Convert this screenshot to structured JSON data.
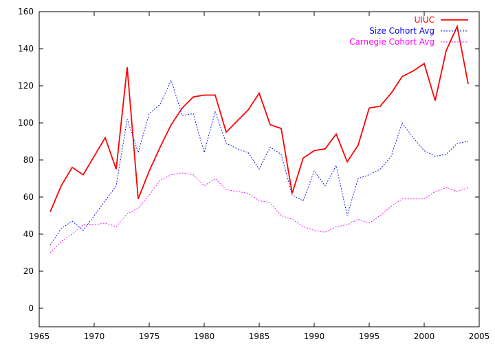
{
  "chart_data": {
    "type": "line",
    "title": "",
    "xlabel": "",
    "ylabel": "",
    "xlim": [
      1965,
      2005
    ],
    "ylim": [
      -10,
      160
    ],
    "xticks": [
      1965,
      1970,
      1975,
      1980,
      1985,
      1990,
      1995,
      2000,
      2005
    ],
    "yticks": [
      0,
      20,
      40,
      60,
      80,
      100,
      120,
      140,
      160
    ],
    "grid": false,
    "legend": "top-right",
    "x": [
      1966,
      1967,
      1968,
      1969,
      1970,
      1971,
      1972,
      1973,
      1974,
      1975,
      1976,
      1977,
      1978,
      1979,
      1980,
      1981,
      1982,
      1983,
      1984,
      1985,
      1986,
      1987,
      1988,
      1989,
      1990,
      1991,
      1992,
      1993,
      1994,
      1995,
      1996,
      1997,
      1998,
      1999,
      2000,
      2001,
      2002,
      2003,
      2004
    ],
    "series": [
      {
        "name": "UIUC",
        "color": "#ff0000",
        "style": "solid",
        "values": [
          52,
          66,
          76,
          72,
          82,
          92,
          75,
          130,
          59,
          74,
          87,
          99,
          108,
          114,
          115,
          115,
          95,
          101,
          107,
          116,
          99,
          97,
          62,
          81,
          85,
          86,
          94,
          79,
          88,
          108,
          109,
          116,
          125,
          128,
          132,
          112,
          139,
          152,
          121
        ]
      },
      {
        "name": "Size Cohort Avg",
        "color": "#0000ff",
        "style": "dotted",
        "values": [
          34,
          43,
          47,
          42,
          50,
          58,
          66,
          102,
          84,
          105,
          110,
          123,
          104,
          105,
          84,
          106,
          89,
          86,
          84,
          75,
          87,
          83,
          61,
          58,
          74,
          66,
          77,
          50,
          70,
          72,
          75,
          82,
          100,
          92,
          85,
          82,
          83,
          89,
          90
        ]
      },
      {
        "name": "Carnegie Cohort Avg",
        "color": "#ff00ff",
        "style": "dotted",
        "values": [
          30,
          36,
          40,
          45,
          45,
          46,
          44,
          51,
          54,
          61,
          69,
          72,
          73,
          72,
          66,
          70,
          64,
          63,
          62,
          58,
          57,
          50,
          48,
          44,
          42,
          41,
          44,
          45,
          48,
          46,
          50,
          55,
          59,
          59,
          59,
          63,
          65,
          63,
          65
        ]
      }
    ]
  }
}
